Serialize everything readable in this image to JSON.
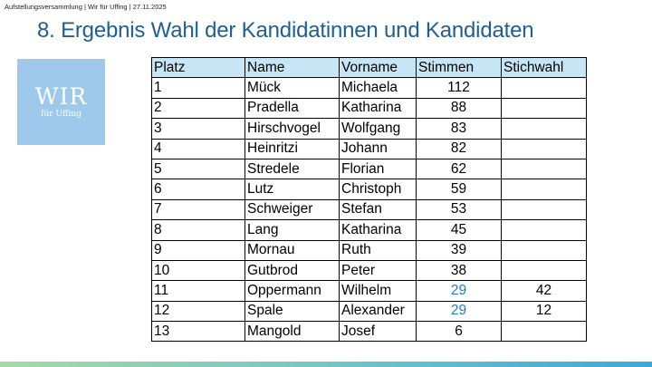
{
  "header": {
    "meta": "Aufstellungsversammlung | Wir für Uffing | 27.11.2025"
  },
  "title": "8. Ergebnis Wahl der Kandidatinnen und Kandidaten",
  "logo": {
    "main": "WIR",
    "sub": "für Uffing"
  },
  "colors": {
    "title": "#1f5f93",
    "header_row": "#c6e5f5",
    "tie_votes": "#2a7bbf",
    "logo_bg": "#9fc9ea"
  },
  "table": {
    "headers": [
      "Platz",
      "Name",
      "Vorname",
      "Stimmen",
      "Stichwahl"
    ],
    "rows": [
      [
        "1",
        "Mück",
        "Michaela",
        "112",
        ""
      ],
      [
        "2",
        "Pradella",
        "Katharina",
        "88",
        ""
      ],
      [
        "3",
        "Hirschvogel",
        "Wolfgang",
        "83",
        ""
      ],
      [
        "4",
        "Heinritzi",
        "Johann",
        "82",
        ""
      ],
      [
        "5",
        "Stredele",
        "Florian",
        "62",
        ""
      ],
      [
        "6",
        "Lutz",
        "Christoph",
        "59",
        ""
      ],
      [
        "7",
        "Schweiger",
        "Stefan",
        "53",
        ""
      ],
      [
        "8",
        "Lang",
        "Katharina",
        "45",
        ""
      ],
      [
        "9",
        "Mornau",
        "Ruth",
        "39",
        ""
      ],
      [
        "10",
        "Gutbrod",
        "Peter",
        "38",
        ""
      ],
      [
        "11",
        "Oppermann",
        "Wilhelm",
        "29",
        "42"
      ],
      [
        "12",
        "Spale",
        "Alexander",
        "29",
        "12"
      ],
      [
        "13",
        "Mangold",
        "Josef",
        "6",
        ""
      ]
    ]
  }
}
